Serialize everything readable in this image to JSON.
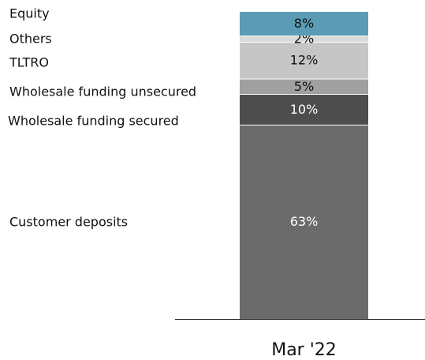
{
  "chart_data": {
    "type": "stacked_bar",
    "categories": [
      "Mar '22"
    ],
    "ylim": [
      0,
      100
    ],
    "series": [
      {
        "name": "Customer deposits",
        "color": "#6b6b6b",
        "values": [
          63
        ],
        "value_labels": [
          "63%"
        ]
      },
      {
        "name": "Wholesale funding secured",
        "color": "#4d4d4d",
        "values": [
          10
        ],
        "value_labels": [
          "10%"
        ]
      },
      {
        "name": "Wholesale funding unsecured",
        "color": "#a0a0a0",
        "values": [
          5
        ],
        "value_labels": [
          "5%"
        ]
      },
      {
        "name": "TLTRO",
        "color": "#c6c6c6",
        "values": [
          12
        ],
        "value_labels": [
          "12%"
        ]
      },
      {
        "name": "Others",
        "color": "#dadada",
        "values": [
          2
        ],
        "value_labels": [
          "2%"
        ]
      },
      {
        "name": "Equity",
        "color": "#5b9bb5",
        "values": [
          8
        ],
        "value_labels": [
          "8%"
        ]
      }
    ]
  }
}
